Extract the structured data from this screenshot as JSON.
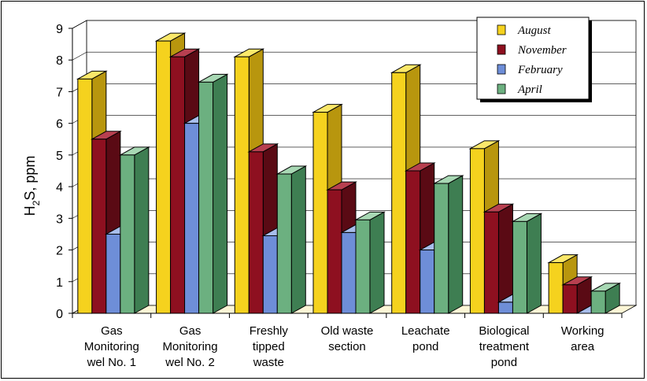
{
  "chart_data": {
    "type": "bar",
    "ylabel": "H2S, ppm",
    "ylabel_main": "H",
    "ylabel_sub": "2",
    "ylabel_rest": "S, ppm",
    "ylim": [
      0,
      9
    ],
    "yticks": [
      "0",
      "1",
      "2",
      "3",
      "4",
      "5",
      "6",
      "7",
      "8",
      "9"
    ],
    "grid": true,
    "legend_position": "top-right",
    "categories": [
      [
        "Gas",
        "Monitoring",
        "wel No. 1"
      ],
      [
        "Gas",
        "Monitoring",
        "wel No. 2"
      ],
      [
        "Freshly",
        "tipped",
        "waste"
      ],
      [
        "Old waste",
        "section"
      ],
      [
        "Leachate",
        "pond"
      ],
      [
        "Biological",
        "treatment",
        "pond"
      ],
      [
        "Working",
        "area"
      ]
    ],
    "series": [
      {
        "name": "August",
        "color": "#F5D21E",
        "side": "#B8960E",
        "top": "#FBE86A",
        "values": [
          7.4,
          8.6,
          8.1,
          6.35,
          7.6,
          5.2,
          1.6
        ]
      },
      {
        "name": "November",
        "color": "#8E1020",
        "side": "#5A0A14",
        "top": "#B84050",
        "values": [
          5.5,
          8.1,
          5.1,
          3.9,
          4.5,
          3.2,
          0.9
        ]
      },
      {
        "name": "February",
        "color": "#6E8ED8",
        "side": "#4A66A8",
        "top": "#A8BEEC",
        "values": [
          2.5,
          6.0,
          2.45,
          2.55,
          2.0,
          0.35,
          0.0
        ]
      },
      {
        "name": "April",
        "color": "#6CB080",
        "side": "#3E7E52",
        "top": "#A8D8B4",
        "values": [
          5.0,
          7.3,
          4.4,
          2.95,
          4.1,
          2.9,
          0.7
        ]
      }
    ]
  }
}
